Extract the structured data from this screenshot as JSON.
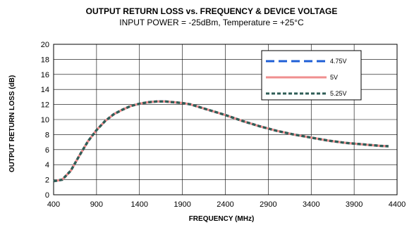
{
  "chart_data": {
    "type": "line",
    "title": "OUTPUT RETURN LOSS  vs.  FREQUENCY  &  DEVICE VOLTAGE",
    "subtitle": "INPUT POWER = -25dBm, Temperature = +25°C",
    "xlabel": "FREQUENCY (MHz)",
    "ylabel": "OUTPUT RETURN LOSS (dB)",
    "xlim": [
      400,
      4400
    ],
    "ylim": [
      0,
      20
    ],
    "xticks": [
      400,
      900,
      1400,
      1900,
      2400,
      2900,
      3400,
      3900,
      4400
    ],
    "yticks": [
      0,
      2,
      4,
      6,
      8,
      10,
      12,
      14,
      16,
      18,
      20
    ],
    "grid": true,
    "legend_position": "top-right",
    "series": [
      {
        "name": "4.75V",
        "color": "#1f5fd6",
        "style": "long-dash",
        "x": [
          400,
          500,
          600,
          700,
          800,
          900,
          1000,
          1100,
          1200,
          1300,
          1400,
          1500,
          1600,
          1700,
          1800,
          1900,
          2000,
          2200,
          2400,
          2600,
          2800,
          3000,
          3200,
          3400,
          3600,
          3800,
          4000,
          4200,
          4300
        ],
        "y": [
          1.8,
          2.0,
          3.2,
          5.2,
          7.1,
          8.6,
          9.8,
          10.7,
          11.3,
          11.8,
          12.1,
          12.3,
          12.4,
          12.4,
          12.3,
          12.2,
          12.0,
          11.3,
          10.6,
          9.8,
          9.1,
          8.5,
          8.0,
          7.6,
          7.2,
          6.9,
          6.7,
          6.5,
          6.45
        ]
      },
      {
        "name": "5V",
        "color": "#f08f8f",
        "style": "solid",
        "x": [
          400,
          500,
          600,
          700,
          800,
          900,
          1000,
          1100,
          1200,
          1300,
          1400,
          1500,
          1600,
          1700,
          1800,
          1900,
          2000,
          2200,
          2400,
          2600,
          2800,
          3000,
          3200,
          3400,
          3600,
          3800,
          4000,
          4200,
          4300
        ],
        "y": [
          1.8,
          2.0,
          3.2,
          5.2,
          7.1,
          8.6,
          9.8,
          10.7,
          11.3,
          11.8,
          12.1,
          12.3,
          12.4,
          12.4,
          12.3,
          12.2,
          12.0,
          11.3,
          10.6,
          9.8,
          9.1,
          8.5,
          8.0,
          7.6,
          7.2,
          6.9,
          6.7,
          6.5,
          6.45
        ]
      },
      {
        "name": "5.25V",
        "color": "#2f5e57",
        "style": "short-dash",
        "x": [
          400,
          500,
          600,
          700,
          800,
          900,
          1000,
          1100,
          1200,
          1300,
          1400,
          1500,
          1600,
          1700,
          1800,
          1900,
          2000,
          2200,
          2400,
          2600,
          2800,
          3000,
          3200,
          3400,
          3600,
          3800,
          4000,
          4200,
          4300
        ],
        "y": [
          1.8,
          2.0,
          3.2,
          5.2,
          7.1,
          8.6,
          9.8,
          10.7,
          11.3,
          11.8,
          12.1,
          12.3,
          12.4,
          12.4,
          12.3,
          12.2,
          12.0,
          11.3,
          10.6,
          9.8,
          9.1,
          8.5,
          8.0,
          7.6,
          7.2,
          6.9,
          6.7,
          6.5,
          6.45
        ]
      }
    ]
  }
}
